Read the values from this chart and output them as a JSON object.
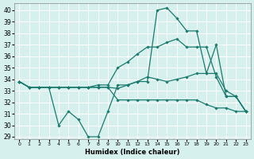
{
  "xlabel": "Humidex (Indice chaleur)",
  "background_color": "#d6f0ed",
  "grid_color": "#ffffff",
  "line_color": "#1a7a6e",
  "xlim": [
    -0.5,
    23.5
  ],
  "ylim": [
    28.8,
    40.6
  ],
  "yticks": [
    29,
    30,
    31,
    32,
    33,
    34,
    35,
    36,
    37,
    38,
    39,
    40
  ],
  "xticks": [
    0,
    1,
    2,
    3,
    4,
    5,
    6,
    7,
    8,
    9,
    10,
    11,
    12,
    13,
    14,
    15,
    16,
    17,
    18,
    19,
    20,
    21,
    22,
    23
  ],
  "series": [
    {
      "x": [
        0,
        1,
        2,
        3,
        4,
        5,
        6,
        7,
        8,
        9,
        10,
        11,
        12,
        13,
        14,
        15,
        16,
        17,
        18,
        19,
        20,
        21,
        22,
        23
      ],
      "y": [
        33.8,
        33.3,
        33.3,
        33.3,
        30.0,
        31.2,
        30.5,
        29.0,
        29.0,
        31.2,
        33.5,
        33.5,
        33.8,
        33.8,
        40.0,
        40.2,
        39.3,
        38.2,
        38.2,
        34.5,
        37.0,
        32.5,
        32.5,
        31.2
      ]
    },
    {
      "x": [
        0,
        1,
        2,
        3,
        4,
        5,
        6,
        7,
        8,
        9,
        10,
        11,
        12,
        13,
        14,
        15,
        16,
        17,
        18,
        19,
        20,
        21,
        22,
        23
      ],
      "y": [
        33.8,
        33.3,
        33.3,
        33.3,
        33.3,
        33.3,
        33.3,
        33.3,
        33.5,
        33.5,
        35.0,
        35.5,
        36.2,
        36.8,
        36.8,
        37.2,
        37.5,
        36.8,
        36.8,
        36.8,
        34.2,
        32.5,
        32.5,
        31.2
      ]
    },
    {
      "x": [
        0,
        1,
        2,
        3,
        4,
        5,
        6,
        7,
        8,
        9,
        10,
        11,
        12,
        13,
        14,
        15,
        16,
        17,
        18,
        19,
        20,
        21,
        22,
        23
      ],
      "y": [
        33.8,
        33.3,
        33.3,
        33.3,
        33.3,
        33.3,
        33.3,
        33.3,
        33.3,
        33.3,
        33.2,
        33.5,
        33.8,
        34.2,
        34.0,
        33.8,
        34.0,
        34.2,
        34.5,
        34.5,
        34.5,
        33.0,
        32.5,
        31.2
      ]
    },
    {
      "x": [
        0,
        1,
        2,
        3,
        4,
        5,
        6,
        7,
        8,
        9,
        10,
        11,
        12,
        13,
        14,
        15,
        16,
        17,
        18,
        19,
        20,
        21,
        22,
        23
      ],
      "y": [
        33.8,
        33.3,
        33.3,
        33.3,
        33.3,
        33.3,
        33.3,
        33.3,
        33.3,
        33.3,
        32.2,
        32.2,
        32.2,
        32.2,
        32.2,
        32.2,
        32.2,
        32.2,
        32.2,
        31.8,
        31.5,
        31.5,
        31.2,
        31.2
      ]
    }
  ]
}
